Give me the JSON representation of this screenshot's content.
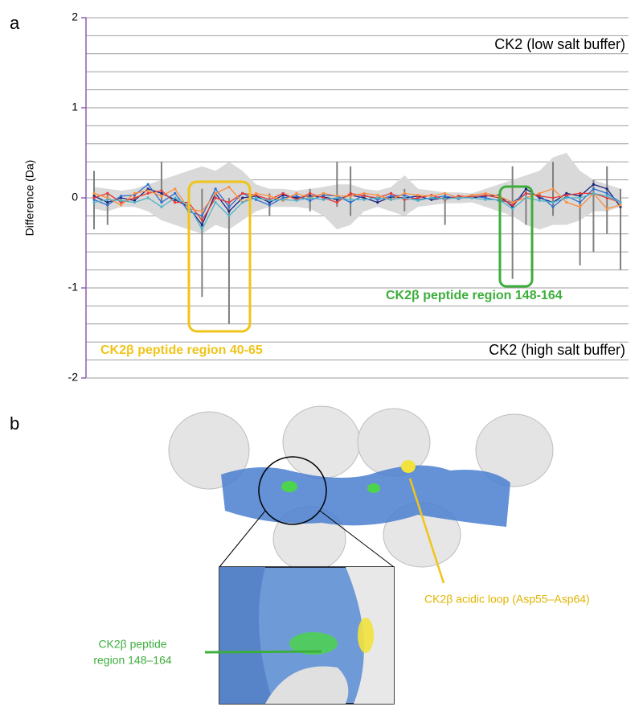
{
  "chart_data": {
    "type": "line",
    "panel_labels": [
      "a",
      "b"
    ],
    "ylabel": "Difference (Da)",
    "ylim": [
      -2,
      2
    ],
    "yticks": [
      -2,
      -1,
      0,
      1,
      2
    ],
    "minor_grid": [
      -1.8,
      -1.6,
      -1.4,
      -1.2,
      -0.8,
      -0.6,
      -0.4,
      -0.2,
      0.2,
      0.4,
      0.6,
      0.8,
      1.2,
      1.4,
      1.6,
      1.8
    ],
    "grid": true,
    "axis_color": "#8a5fb0",
    "annotations": [
      {
        "text": "CK2 (low salt buffer)",
        "color": "#000000"
      },
      {
        "text": "CK2 (high salt buffer)",
        "color": "#000000"
      },
      {
        "text": "CK2β peptide region 40-65",
        "color": "#f0c419"
      },
      {
        "text": "CK2β peptide region 148-164",
        "color": "#3cae3c"
      }
    ],
    "categories": [
      null,
      null,
      null,
      null,
      null,
      null,
      null,
      null,
      null,
      null,
      null,
      null,
      null,
      null,
      null,
      null,
      null,
      null,
      null,
      null,
      null,
      null,
      null,
      null,
      null,
      null,
      null,
      null,
      null,
      null,
      null,
      null,
      null,
      null,
      null,
      null,
      null,
      null,
      null,
      null
    ],
    "band": {
      "color": "#d9d9d9",
      "upper": [
        0.12,
        0.1,
        0.08,
        0.1,
        0.15,
        0.2,
        0.25,
        0.3,
        0.35,
        0.3,
        0.4,
        0.3,
        0.15,
        0.1,
        0.1,
        0.08,
        0.1,
        0.12,
        0.15,
        0.15,
        0.1,
        0.08,
        0.12,
        0.25,
        0.1,
        0.08,
        0.06,
        0.06,
        0.05,
        0.1,
        0.15,
        0.2,
        0.25,
        0.3,
        0.45,
        0.5,
        0.3,
        0.2,
        0.15,
        0.1
      ],
      "lower": [
        -0.12,
        -0.15,
        -0.1,
        -0.1,
        -0.15,
        -0.25,
        -0.3,
        -0.35,
        -0.4,
        -0.3,
        -0.35,
        -0.25,
        -0.15,
        -0.1,
        -0.1,
        -0.1,
        -0.12,
        -0.2,
        -0.35,
        -0.3,
        -0.15,
        -0.1,
        -0.15,
        -0.2,
        -0.1,
        -0.08,
        -0.06,
        -0.06,
        -0.05,
        -0.1,
        -0.15,
        -0.2,
        -0.3,
        -0.35,
        -0.3,
        -0.3,
        -0.25,
        -0.15,
        -0.15,
        -0.1
      ]
    },
    "error_bars": {
      "color": "#808080",
      "high": [
        0.3,
        0.05,
        null,
        null,
        null,
        0.4,
        null,
        0.1,
        0.1,
        null,
        0.0,
        null,
        null,
        0.05,
        null,
        null,
        0.1,
        null,
        0.4,
        0.35,
        null,
        null,
        null,
        0.1,
        null,
        null,
        0.05,
        null,
        null,
        null,
        null,
        0.35,
        0.1,
        null,
        0.4,
        null,
        0.05,
        0.2,
        0.35,
        0.1
      ],
      "low": [
        -0.35,
        -0.3,
        null,
        null,
        null,
        -0.05,
        null,
        -0.45,
        -1.1,
        null,
        -1.4,
        null,
        null,
        -0.2,
        null,
        null,
        -0.15,
        null,
        -0.1,
        -0.2,
        null,
        null,
        null,
        -0.15,
        null,
        null,
        -0.3,
        null,
        null,
        null,
        null,
        -0.9,
        -0.3,
        null,
        -0.2,
        null,
        -0.75,
        -0.6,
        -0.4,
        -0.8
      ]
    },
    "series": [
      {
        "color": "#1a237e",
        "values": [
          0.02,
          -0.05,
          0,
          -0.03,
          0.1,
          0.05,
          -0.02,
          -0.1,
          -0.3,
          0.05,
          -0.15,
          0,
          0.02,
          -0.05,
          0.03,
          0,
          0.02,
          0.01,
          -0.02,
          0.03,
          0,
          -0.05,
          0.01,
          0,
          0.02,
          -0.02,
          0,
          0.01,
          0,
          0.02,
          0.03,
          -0.1,
          0.1,
          0,
          -0.05,
          0.05,
          0.02,
          0.15,
          0.1,
          -0.1
        ]
      },
      {
        "color": "#2e6fd1",
        "values": [
          -0.02,
          -0.08,
          0.02,
          0.03,
          0.15,
          -0.05,
          0.05,
          -0.15,
          -0.2,
          0.1,
          -0.1,
          0.05,
          -0.02,
          -0.08,
          0,
          0.02,
          -0.03,
          0.03,
          0.02,
          -0.05,
          0.03,
          -0.02,
          0.02,
          0.03,
          -0.02,
          0,
          0.02,
          -0.01,
          0.02,
          0,
          -0.03,
          -0.05,
          0.05,
          0.03,
          -0.1,
          0.02,
          -0.05,
          0.1,
          0.05,
          -0.05
        ]
      },
      {
        "color": "#e53935",
        "values": [
          0,
          0.05,
          -0.05,
          0,
          0.05,
          0.08,
          -0.05,
          -0.05,
          -0.25,
          0,
          -0.05,
          0.05,
          0.03,
          -0.02,
          0.05,
          -0.02,
          0.05,
          0,
          -0.05,
          0.05,
          0.02,
          0,
          0.05,
          -0.02,
          0,
          0.03,
          -0.02,
          0.02,
          0.01,
          0.03,
          0,
          -0.08,
          0.05,
          0.02,
          0,
          0.03,
          0.05,
          0.05,
          0,
          -0.05
        ]
      },
      {
        "color": "#fb8c3c",
        "values": [
          0.05,
          0,
          -0.08,
          0.05,
          0.08,
          0.02,
          0.1,
          -0.12,
          -0.15,
          0.05,
          0.12,
          -0.05,
          0.05,
          0.02,
          -0.03,
          0.05,
          0,
          0.05,
          0.02,
          0.02,
          0.05,
          0.03,
          -0.02,
          0.05,
          0.03,
          0.02,
          0.05,
          0,
          0.03,
          0.05,
          0.02,
          -0.05,
          0,
          0.05,
          0.1,
          -0.05,
          -0.1,
          0.05,
          -0.12,
          -0.08
        ]
      },
      {
        "color": "#4fb3c8",
        "values": [
          -0.05,
          -0.02,
          -0.03,
          -0.05,
          0,
          -0.1,
          0,
          -0.08,
          -0.35,
          -0.05,
          -0.2,
          -0.05,
          0,
          -0.03,
          -0.02,
          -0.03,
          0,
          -0.02,
          0,
          -0.02,
          -0.02,
          0,
          -0.02,
          0,
          -0.03,
          0,
          -0.01,
          0,
          0,
          -0.02,
          -0.02,
          -0.12,
          0,
          -0.03,
          -0.05,
          0,
          0,
          0.05,
          0.02,
          -0.05
        ]
      }
    ]
  },
  "structure": {
    "acidic_loop_label": "CK2β acidic loop (Asp55–Asp64)",
    "peptide_label": [
      "CK2β peptide",
      "region 148–164"
    ]
  }
}
